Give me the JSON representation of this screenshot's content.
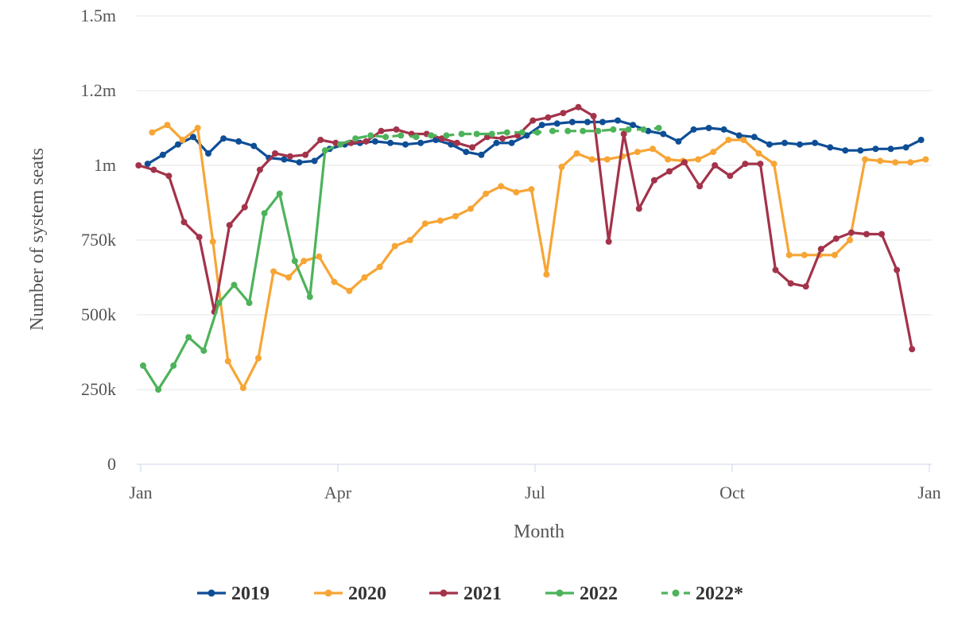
{
  "chart_data": {
    "type": "line",
    "title": "",
    "xlabel": "Month",
    "ylabel": "Number of system seats",
    "x_tick_labels": [
      "Jan",
      "Apr",
      "Jul",
      "Oct",
      "Jan"
    ],
    "y_tick_labels": [
      "0",
      "250k",
      "500k",
      "750k",
      "1m",
      "1.2m",
      "1.5m"
    ],
    "ylim": [
      0,
      1500000
    ],
    "grid": "horizontal",
    "legend_position": "bottom",
    "series": [
      {
        "name": "2019",
        "color": "#0e4e96",
        "style": "solid",
        "x_weeks": [
          0.3,
          1.3,
          2.3,
          3.3,
          4.3,
          5.3,
          6.3,
          7.3,
          8.3,
          9.3,
          10.3,
          11.3,
          12.3,
          13.3,
          14.3,
          15.3,
          16.3,
          17.3,
          18.3,
          19.3,
          20.3,
          21.3,
          22.3,
          23.3,
          24.3,
          25.3,
          26.3,
          27.3,
          28.3,
          29.3,
          30.3,
          31.3,
          32.3,
          33.3,
          34.3,
          35.3,
          36.3,
          37.3,
          38.3,
          39.3,
          40.3,
          41.3,
          42.3,
          43.3,
          44.3,
          45.3,
          46.3,
          47.3,
          48.3,
          49.3,
          50.3,
          51.3
        ],
        "values": [
          1005000,
          1035000,
          1070000,
          1095000,
          1040000,
          1090000,
          1080000,
          1065000,
          1025000,
          1020000,
          1010000,
          1015000,
          1055000,
          1070000,
          1075000,
          1080000,
          1075000,
          1070000,
          1075000,
          1085000,
          1070000,
          1045000,
          1035000,
          1075000,
          1075000,
          1100000,
          1135000,
          1140000,
          1145000,
          1145000,
          1145000,
          1150000,
          1135000,
          1115000,
          1105000,
          1080000,
          1120000,
          1125000,
          1120000,
          1100000,
          1095000,
          1070000,
          1075000,
          1070000,
          1075000,
          1060000,
          1050000,
          1050000,
          1055000,
          1055000,
          1060000,
          1085000
        ]
      },
      {
        "name": "2020",
        "color": "#f7a535",
        "style": "solid",
        "x_weeks": [
          0.6,
          1.6,
          2.6,
          3.6,
          4.6,
          5.6,
          6.6,
          7.6,
          8.6,
          9.6,
          10.6,
          11.6,
          12.6,
          13.6,
          14.6,
          15.6,
          16.6,
          17.6,
          18.6,
          19.6,
          20.6,
          21.6,
          22.6,
          23.6,
          24.6,
          25.6,
          26.6,
          27.6,
          28.6,
          29.6,
          30.6,
          31.6,
          32.6,
          33.6,
          34.6,
          35.6,
          36.6,
          37.6,
          38.6,
          39.6,
          40.6,
          41.6,
          42.6,
          43.6,
          44.6,
          45.6,
          46.6,
          47.6,
          48.6,
          49.6,
          50.6,
          51.6
        ],
        "values": [
          1110000,
          1135000,
          1085000,
          1125000,
          745000,
          345000,
          255000,
          355000,
          645000,
          625000,
          680000,
          695000,
          610000,
          580000,
          625000,
          660000,
          730000,
          750000,
          805000,
          815000,
          830000,
          855000,
          905000,
          930000,
          910000,
          920000,
          635000,
          995000,
          1040000,
          1020000,
          1020000,
          1030000,
          1045000,
          1055000,
          1020000,
          1015000,
          1020000,
          1045000,
          1085000,
          1085000,
          1040000,
          1005000,
          700000,
          700000,
          700000,
          700000,
          750000,
          1020000,
          1015000,
          1010000,
          1010000,
          1020000
        ]
      },
      {
        "name": "2021",
        "color": "#a3334a",
        "style": "solid",
        "x_weeks": [
          -0.3,
          0.7,
          1.7,
          2.7,
          3.7,
          4.7,
          5.7,
          6.7,
          7.7,
          8.7,
          9.7,
          10.7,
          11.7,
          12.7,
          13.7,
          14.7,
          15.7,
          16.7,
          17.7,
          18.7,
          19.7,
          20.7,
          21.7,
          22.7,
          23.7,
          24.7,
          25.7,
          26.7,
          27.7,
          28.7,
          29.7,
          30.7,
          31.7,
          32.7,
          33.7,
          34.7,
          35.7,
          36.7,
          37.7,
          38.7,
          39.7,
          40.7,
          41.7,
          42.7,
          43.7,
          44.7,
          45.7,
          46.7,
          47.7,
          48.7,
          49.7,
          50.7
        ],
        "values": [
          1000000,
          985000,
          965000,
          810000,
          760000,
          510000,
          800000,
          860000,
          985000,
          1040000,
          1030000,
          1035000,
          1085000,
          1075000,
          1075000,
          1080000,
          1115000,
          1120000,
          1105000,
          1105000,
          1090000,
          1075000,
          1060000,
          1095000,
          1090000,
          1100000,
          1150000,
          1160000,
          1175000,
          1195000,
          1165000,
          745000,
          1105000,
          855000,
          950000,
          980000,
          1010000,
          930000,
          1000000,
          965000,
          1005000,
          1005000,
          650000,
          605000,
          595000,
          720000,
          755000,
          775000,
          770000,
          770000,
          650000,
          385000
        ]
      },
      {
        "name": "2022",
        "color": "#4db35a",
        "style": "solid",
        "x_weeks": [
          0,
          1,
          2,
          3,
          4,
          5,
          6,
          7,
          8,
          9,
          10,
          11,
          12
        ],
        "values": [
          330000,
          250000,
          330000,
          425000,
          380000,
          540000,
          600000,
          540000,
          840000,
          905000,
          680000,
          560000,
          1050000
        ]
      },
      {
        "name": "2022*",
        "color": "#4db35a",
        "style": "dashed",
        "x_weeks": [
          12,
          13,
          14,
          15,
          16,
          17,
          18,
          19,
          20,
          21,
          22,
          23,
          24,
          25,
          26,
          27,
          28,
          29,
          30,
          31,
          32,
          33,
          34
        ],
        "values": [
          1050000,
          1070000,
          1090000,
          1100000,
          1095000,
          1100000,
          1095000,
          1100000,
          1100000,
          1105000,
          1105000,
          1105000,
          1110000,
          1110000,
          1110000,
          1115000,
          1115000,
          1115000,
          1115000,
          1120000,
          1120000,
          1120000,
          1125000
        ]
      }
    ]
  }
}
